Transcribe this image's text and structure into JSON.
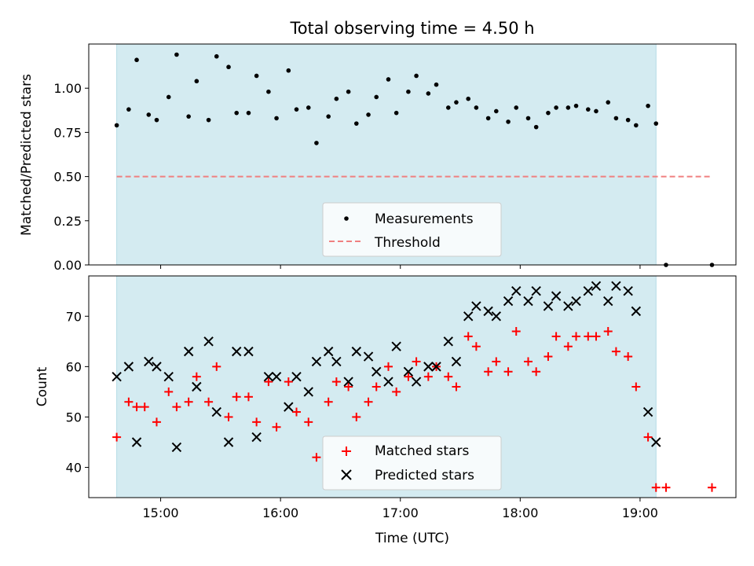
{
  "chart_data": [
    {
      "type": "scatter",
      "title": "Total observing time = 4.50 h",
      "xlabel": "",
      "ylabel": "Matched/Predicted stars",
      "ylim": [
        0,
        1.25
      ],
      "yticks": [
        "0.00",
        "0.25",
        "0.50",
        "0.75",
        "1.00"
      ],
      "shaded_span": [
        "14:38",
        "19:08"
      ],
      "shade_color": "#d4ebf1",
      "series": [
        {
          "name": "Measurements",
          "color": "#000000",
          "marker": "dot",
          "x": [
            "14:38",
            "14:44",
            "14:48",
            "14:54",
            "14:58",
            "15:04",
            "15:08",
            "15:14",
            "15:18",
            "15:24",
            "15:28",
            "15:34",
            "15:38",
            "15:44",
            "15:48",
            "15:54",
            "15:58",
            "16:04",
            "16:08",
            "16:14",
            "16:18",
            "16:24",
            "16:28",
            "16:34",
            "16:38",
            "16:44",
            "16:48",
            "16:54",
            "16:58",
            "17:04",
            "17:08",
            "17:14",
            "17:18",
            "17:24",
            "17:28",
            "17:34",
            "17:38",
            "17:44",
            "17:48",
            "17:54",
            "17:58",
            "18:04",
            "18:08",
            "18:14",
            "18:18",
            "18:24",
            "18:28",
            "18:34",
            "18:38",
            "18:44",
            "18:48",
            "18:54",
            "18:58",
            "19:04",
            "19:08",
            "19:13",
            "19:36"
          ],
          "y": [
            0.79,
            0.88,
            1.16,
            0.85,
            0.82,
            0.95,
            1.19,
            0.84,
            1.04,
            0.82,
            1.18,
            1.12,
            0.86,
            0.86,
            1.07,
            0.98,
            0.83,
            1.1,
            0.88,
            0.89,
            0.69,
            0.84,
            0.94,
            0.98,
            0.8,
            0.85,
            0.95,
            1.05,
            0.86,
            0.98,
            1.07,
            0.97,
            1.02,
            0.89,
            0.92,
            0.94,
            0.89,
            0.83,
            0.87,
            0.81,
            0.89,
            0.83,
            0.78,
            0.86,
            0.89,
            0.89,
            0.9,
            0.88,
            0.87,
            0.92,
            0.83,
            0.82,
            0.79,
            0.9,
            0.8,
            0.0,
            0.0
          ]
        },
        {
          "name": "Threshold",
          "color": "#f08080",
          "style": "dashed",
          "x": [
            "14:38",
            "19:36"
          ],
          "y": [
            0.5,
            0.5
          ]
        }
      ],
      "legend": {
        "position": "lower center"
      }
    },
    {
      "type": "scatter",
      "title": "",
      "xlabel": "Time (UTC)",
      "ylabel": "Count",
      "ylim": [
        34,
        78
      ],
      "yticks": [
        "40",
        "50",
        "60",
        "70"
      ],
      "xlim": [
        "14:24",
        "19:48"
      ],
      "xticks": [
        "15:00",
        "16:00",
        "17:00",
        "18:00",
        "19:00"
      ],
      "shaded_span": [
        "14:38",
        "19:08"
      ],
      "shade_color": "#d4ebf1",
      "series": [
        {
          "name": "Matched stars",
          "color": "#ff0000",
          "marker": "plus",
          "x": [
            "14:38",
            "14:44",
            "14:48",
            "14:52",
            "14:58",
            "15:04",
            "15:08",
            "15:14",
            "15:18",
            "15:24",
            "15:28",
            "15:34",
            "15:38",
            "15:44",
            "15:48",
            "15:54",
            "15:58",
            "16:04",
            "16:08",
            "16:14",
            "16:18",
            "16:24",
            "16:28",
            "16:34",
            "16:38",
            "16:44",
            "16:48",
            "16:54",
            "16:58",
            "17:04",
            "17:08",
            "17:14",
            "17:18",
            "17:24",
            "17:28",
            "17:34",
            "17:38",
            "17:44",
            "17:48",
            "17:54",
            "17:58",
            "18:04",
            "18:08",
            "18:14",
            "18:18",
            "18:24",
            "18:28",
            "18:34",
            "18:38",
            "18:44",
            "18:48",
            "18:54",
            "18:58",
            "19:04",
            "19:08",
            "19:13",
            "19:36"
          ],
          "y": [
            46,
            53,
            52,
            52,
            49,
            55,
            52,
            53,
            58,
            53,
            60,
            50,
            54,
            54,
            49,
            57,
            48,
            57,
            51,
            49,
            42,
            53,
            57,
            56,
            50,
            53,
            56,
            60,
            55,
            58,
            61,
            58,
            60,
            58,
            56,
            66,
            64,
            59,
            61,
            59,
            67,
            61,
            59,
            62,
            66,
            64,
            66,
            66,
            66,
            67,
            63,
            62,
            56,
            46,
            36,
            36,
            36
          ]
        },
        {
          "name": "Predicted stars",
          "color": "#000000",
          "marker": "x",
          "x": [
            "14:38",
            "14:44",
            "14:48",
            "14:54",
            "14:58",
            "15:04",
            "15:08",
            "15:14",
            "15:18",
            "15:24",
            "15:28",
            "15:34",
            "15:38",
            "15:44",
            "15:48",
            "15:54",
            "15:58",
            "16:04",
            "16:08",
            "16:14",
            "16:18",
            "16:24",
            "16:28",
            "16:34",
            "16:38",
            "16:44",
            "16:48",
            "16:54",
            "16:58",
            "17:04",
            "17:08",
            "17:14",
            "17:18",
            "17:24",
            "17:28",
            "17:34",
            "17:38",
            "17:44",
            "17:48",
            "17:54",
            "17:58",
            "18:04",
            "18:08",
            "18:14",
            "18:18",
            "18:24",
            "18:28",
            "18:34",
            "18:38",
            "18:44",
            "18:48",
            "18:54",
            "18:58",
            "19:04",
            "19:08"
          ],
          "y": [
            58,
            60,
            45,
            61,
            60,
            58,
            44,
            63,
            56,
            65,
            51,
            45,
            63,
            63,
            46,
            58,
            58,
            52,
            58,
            55,
            61,
            63,
            61,
            57,
            63,
            62,
            59,
            57,
            64,
            59,
            57,
            60,
            60,
            65,
            61,
            70,
            72,
            71,
            70,
            73,
            75,
            73,
            75,
            72,
            74,
            72,
            73,
            75,
            76,
            73,
            76,
            75,
            71,
            51,
            45
          ]
        }
      ],
      "legend": {
        "position": "lower center"
      }
    }
  ]
}
